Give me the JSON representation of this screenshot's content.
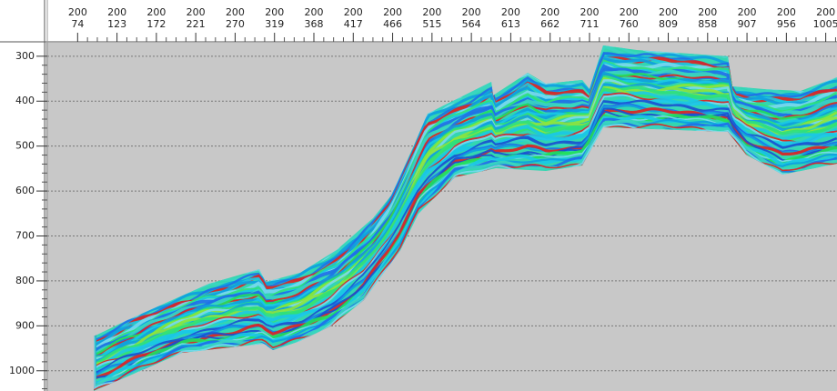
{
  "top_axis": {
    "lim": [
      34,
      1019
    ],
    "inline_labels": [
      200,
      200,
      200,
      200,
      200,
      200,
      200,
      200,
      200,
      200,
      200,
      200,
      200,
      200,
      200,
      200,
      200,
      200,
      200,
      200
    ],
    "ticks": [
      74,
      123,
      172,
      221,
      270,
      319,
      368,
      417,
      466,
      515,
      564,
      613,
      662,
      711,
      760,
      809,
      858,
      907,
      956,
      1005
    ]
  },
  "left_axis": {
    "lim": [
      270,
      1045
    ],
    "ticks": [
      300,
      400,
      500,
      600,
      700,
      800,
      900,
      1000
    ]
  },
  "grid": true
}
